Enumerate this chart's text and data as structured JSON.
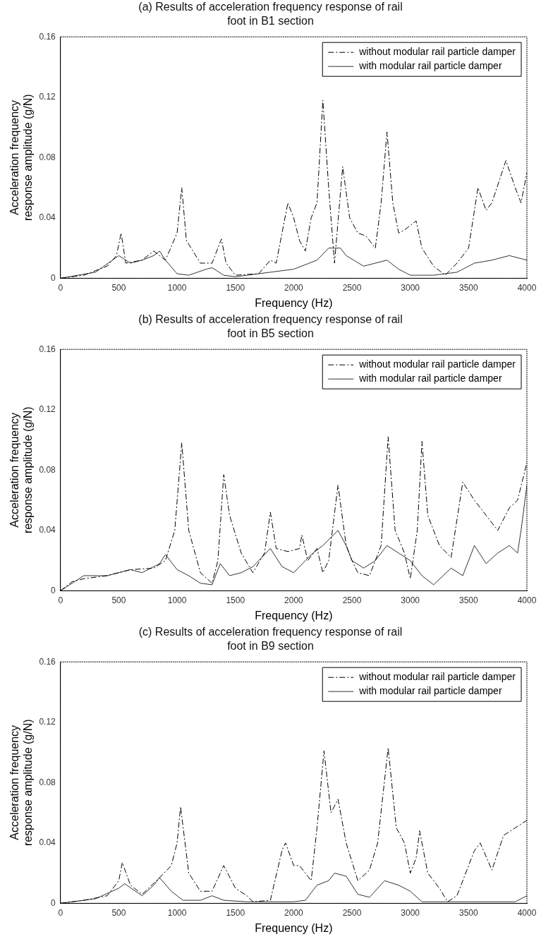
{
  "chart_data": [
    {
      "type": "line",
      "title": "(a) Results of acceleration frequency response of rail foot in B1 section",
      "xlabel": "Frequency (Hz)",
      "ylabel": "Acceleration frequency response amplitude (g/N)",
      "xlim": [
        0,
        4000
      ],
      "xticks": [
        0,
        500,
        1000,
        1500,
        2000,
        2500,
        3000,
        3500,
        4000
      ],
      "ylim": [
        0,
        0.16
      ],
      "yticks": [
        0,
        0.04,
        0.08,
        0.12,
        0.16
      ],
      "grid": false,
      "legend": "top right",
      "marker": "none",
      "series": [
        {
          "name": "without modular rail particle damper",
          "color": "#000000",
          "line_style": "dashed",
          "x": [
            0,
            200,
            400,
            480,
            520,
            560,
            700,
            800,
            900,
            1000,
            1040,
            1080,
            1200,
            1300,
            1380,
            1420,
            1500,
            1700,
            1800,
            1850,
            1950,
            2000,
            2050,
            2100,
            2150,
            2200,
            2250,
            2300,
            2350,
            2420,
            2480,
            2550,
            2620,
            2700,
            2750,
            2800,
            2850,
            2900,
            2950,
            3000,
            3050,
            3100,
            3200,
            3300,
            3400,
            3500,
            3580,
            3650,
            3700,
            3820,
            3900,
            3950,
            4000
          ],
          "values": [
            0,
            0.002,
            0.008,
            0.015,
            0.03,
            0.01,
            0.012,
            0.018,
            0.012,
            0.03,
            0.06,
            0.025,
            0.01,
            0.01,
            0.026,
            0.01,
            0.002,
            0.003,
            0.012,
            0.01,
            0.05,
            0.04,
            0.025,
            0.018,
            0.04,
            0.05,
            0.118,
            0.06,
            0.01,
            0.074,
            0.04,
            0.03,
            0.028,
            0.02,
            0.05,
            0.097,
            0.05,
            0.03,
            0.032,
            0.035,
            0.038,
            0.02,
            0.008,
            0.002,
            0.01,
            0.02,
            0.06,
            0.045,
            0.05,
            0.078,
            0.06,
            0.05,
            0.07
          ]
        },
        {
          "name": "with modular rail particle damper",
          "color": "#333333",
          "line_style": "solid",
          "x": [
            0,
            300,
            500,
            600,
            700,
            800,
            850,
            900,
            1000,
            1100,
            1250,
            1300,
            1400,
            1500,
            1800,
            2000,
            2200,
            2300,
            2400,
            2450,
            2600,
            2800,
            2900,
            3000,
            3200,
            3400,
            3550,
            3700,
            3850,
            4000
          ],
          "values": [
            0,
            0.004,
            0.015,
            0.01,
            0.012,
            0.015,
            0.018,
            0.012,
            0.003,
            0.002,
            0.006,
            0.007,
            0.002,
            0.001,
            0.004,
            0.006,
            0.012,
            0.02,
            0.02,
            0.015,
            0.008,
            0.012,
            0.006,
            0.002,
            0.002,
            0.004,
            0.01,
            0.012,
            0.015,
            0.012
          ]
        }
      ]
    },
    {
      "type": "line",
      "title": "(b) Results of acceleration frequency response of rail foot in B5 section",
      "xlabel": "Frequency (Hz)",
      "ylabel": "Acceleration frequency response amplitude (g/N)",
      "xlim": [
        0,
        4000
      ],
      "xticks": [
        0,
        500,
        1000,
        1500,
        2000,
        2500,
        3000,
        3500,
        4000
      ],
      "ylim": [
        0,
        0.16
      ],
      "yticks": [
        0,
        0.04,
        0.08,
        0.12,
        0.16
      ],
      "grid": false,
      "legend": "top right",
      "marker": "none",
      "series": [
        {
          "name": "without modular rail particle damper",
          "color": "#000000",
          "line_style": "dashed",
          "x": [
            0,
            100,
            200,
            400,
            600,
            800,
            900,
            980,
            1040,
            1100,
            1200,
            1300,
            1350,
            1400,
            1450,
            1550,
            1650,
            1750,
            1800,
            1850,
            1950,
            2050,
            2070,
            2120,
            2200,
            2250,
            2300,
            2380,
            2450,
            2500,
            2550,
            2650,
            2750,
            2810,
            2870,
            2950,
            3000,
            3060,
            3100,
            3150,
            3250,
            3350,
            3450,
            3550,
            3650,
            3750,
            3850,
            3920,
            4000
          ],
          "values": [
            0,
            0.006,
            0.008,
            0.01,
            0.014,
            0.015,
            0.02,
            0.04,
            0.098,
            0.04,
            0.012,
            0.005,
            0.02,
            0.077,
            0.05,
            0.025,
            0.012,
            0.025,
            0.052,
            0.028,
            0.026,
            0.028,
            0.037,
            0.02,
            0.028,
            0.012,
            0.02,
            0.07,
            0.03,
            0.02,
            0.012,
            0.01,
            0.03,
            0.102,
            0.04,
            0.025,
            0.008,
            0.04,
            0.099,
            0.05,
            0.03,
            0.022,
            0.072,
            0.06,
            0.05,
            0.04,
            0.055,
            0.06,
            0.085
          ]
        },
        {
          "name": "with modular rail particle damper",
          "color": "#333333",
          "line_style": "solid",
          "x": [
            0,
            200,
            400,
            600,
            700,
            850,
            900,
            1000,
            1100,
            1200,
            1300,
            1370,
            1450,
            1550,
            1650,
            1800,
            1900,
            2000,
            2150,
            2250,
            2380,
            2450,
            2500,
            2600,
            2700,
            2800,
            2900,
            3000,
            3100,
            3200,
            3350,
            3450,
            3550,
            3650,
            3750,
            3850,
            3920,
            3950,
            4000
          ],
          "values": [
            0,
            0.01,
            0.01,
            0.014,
            0.012,
            0.018,
            0.024,
            0.014,
            0.01,
            0.005,
            0.004,
            0.018,
            0.01,
            0.012,
            0.016,
            0.028,
            0.016,
            0.012,
            0.024,
            0.03,
            0.04,
            0.03,
            0.02,
            0.015,
            0.02,
            0.03,
            0.025,
            0.02,
            0.01,
            0.004,
            0.015,
            0.01,
            0.03,
            0.018,
            0.025,
            0.03,
            0.025,
            0.04,
            0.07
          ]
        }
      ]
    },
    {
      "type": "line",
      "title": "(c) Results of acceleration frequency response of rail foot in B9 section",
      "xlabel": "Frequency (Hz)",
      "ylabel": "Acceleration frequency response amplitude (g/N)",
      "xlim": [
        0,
        4000
      ],
      "xticks": [
        0,
        500,
        1000,
        1500,
        2000,
        2500,
        3000,
        3500,
        4000
      ],
      "ylim": [
        0,
        0.16
      ],
      "yticks": [
        0,
        0.04,
        0.08,
        0.12,
        0.16
      ],
      "grid": false,
      "legend": "top right",
      "marker": "none",
      "series": [
        {
          "name": "without modular rail particle damper",
          "color": "#000000",
          "line_style": "dashed",
          "x": [
            0,
            200,
            400,
            500,
            530,
            600,
            700,
            850,
            950,
            1000,
            1030,
            1100,
            1200,
            1300,
            1400,
            1500,
            1600,
            1650,
            1800,
            1900,
            1930,
            2000,
            2050,
            2100,
            2150,
            2200,
            2260,
            2320,
            2380,
            2450,
            2550,
            2650,
            2720,
            2810,
            2880,
            2950,
            3000,
            3050,
            3080,
            3150,
            3250,
            3320,
            3400,
            3550,
            3600,
            3700,
            3800,
            3900,
            4000
          ],
          "values": [
            0,
            0.002,
            0.005,
            0.015,
            0.027,
            0.012,
            0.006,
            0.017,
            0.025,
            0.04,
            0.064,
            0.02,
            0.008,
            0.008,
            0.025,
            0.01,
            0.005,
            0.001,
            0.002,
            0.035,
            0.04,
            0.025,
            0.025,
            0.02,
            0.015,
            0.05,
            0.101,
            0.06,
            0.069,
            0.04,
            0.015,
            0.022,
            0.04,
            0.103,
            0.05,
            0.04,
            0.02,
            0.03,
            0.048,
            0.02,
            0.01,
            0.001,
            0.005,
            0.035,
            0.04,
            0.022,
            0.045,
            0.05,
            0.055
          ]
        },
        {
          "name": "with modular rail particle damper",
          "color": "#333333",
          "line_style": "solid",
          "x": [
            0,
            300,
            500,
            550,
            700,
            800,
            850,
            950,
            1050,
            1200,
            1300,
            1400,
            1600,
            2000,
            2100,
            2200,
            2300,
            2350,
            2450,
            2550,
            2650,
            2780,
            2900,
            3000,
            3100,
            3500,
            3900,
            4000
          ],
          "values": [
            0,
            0.003,
            0.01,
            0.013,
            0.005,
            0.012,
            0.017,
            0.008,
            0.002,
            0.002,
            0.005,
            0.002,
            0.001,
            0.001,
            0.002,
            0.012,
            0.015,
            0.02,
            0.018,
            0.006,
            0.004,
            0.015,
            0.012,
            0.008,
            0.001,
            0.001,
            0.001,
            0.005
          ]
        }
      ]
    }
  ]
}
